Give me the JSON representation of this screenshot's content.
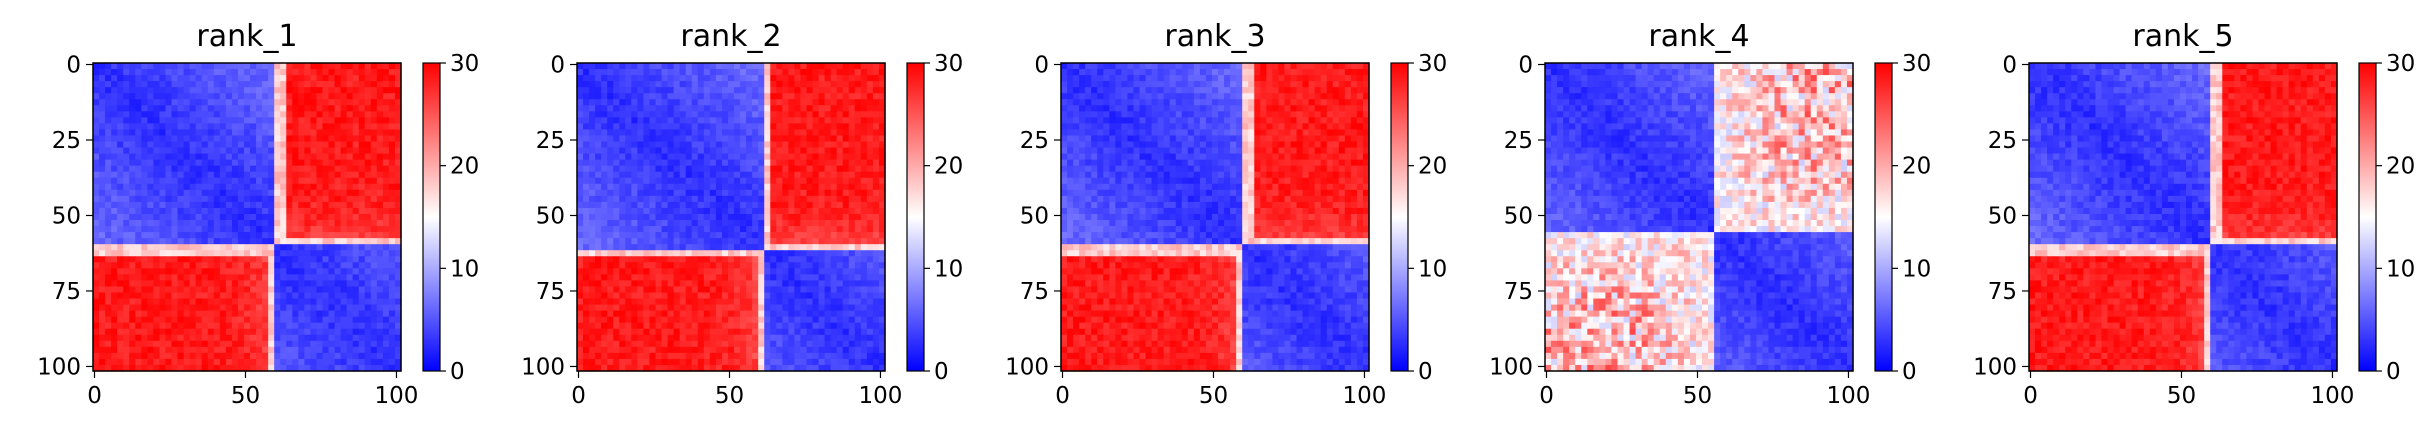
{
  "chart_data": [
    {
      "type": "heatmap",
      "title": "rank_1",
      "x_ticks": [
        "0",
        "50",
        "100"
      ],
      "y_ticks": [
        "0",
        "25",
        "50",
        "75",
        "100"
      ],
      "colorbar_ticks": [
        "0",
        "10",
        "20",
        "30"
      ],
      "vmin": 0,
      "vmax": 30,
      "n": 102,
      "break": 60
    },
    {
      "type": "heatmap",
      "title": "rank_2",
      "x_ticks": [
        "0",
        "50",
        "100"
      ],
      "y_ticks": [
        "0",
        "25",
        "50",
        "75",
        "100"
      ],
      "colorbar_ticks": [
        "0",
        "10",
        "20",
        "30"
      ],
      "vmin": 0,
      "vmax": 30,
      "n": 102,
      "break": 61
    },
    {
      "type": "heatmap",
      "title": "rank_3",
      "x_ticks": [
        "0",
        "50",
        "100"
      ],
      "y_ticks": [
        "0",
        "25",
        "50",
        "75",
        "100"
      ],
      "colorbar_ticks": [
        "0",
        "10",
        "20",
        "30"
      ],
      "vmin": 0,
      "vmax": 30,
      "n": 102,
      "break": 60
    },
    {
      "type": "heatmap",
      "title": "rank_4",
      "x_ticks": [
        "0",
        "50",
        "100"
      ],
      "y_ticks": [
        "0",
        "25",
        "50",
        "75",
        "100"
      ],
      "colorbar_ticks": [
        "0",
        "10",
        "20",
        "30"
      ],
      "vmin": 0,
      "vmax": 30,
      "n": 102,
      "break": 55
    },
    {
      "type": "heatmap",
      "title": "rank_5",
      "x_ticks": [
        "0",
        "50",
        "100"
      ],
      "y_ticks": [
        "0",
        "25",
        "50",
        "75",
        "100"
      ],
      "colorbar_ticks": [
        "0",
        "10",
        "20",
        "30"
      ],
      "vmin": 0,
      "vmax": 30,
      "n": 102,
      "break": 60
    }
  ],
  "colors": {
    "low": "#0000ff",
    "mid": "#ffffff",
    "high": "#ff0000"
  }
}
